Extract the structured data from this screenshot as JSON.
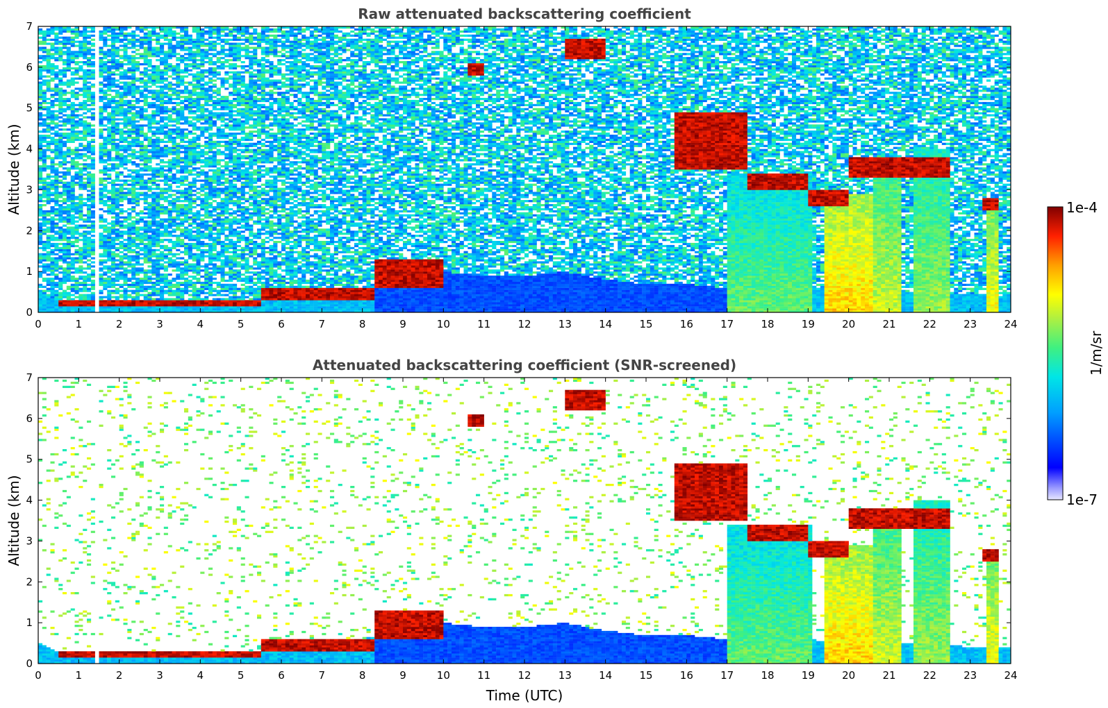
{
  "chart_data": [
    {
      "type": "heatmap",
      "title": "Raw attenuated backscattering coefficient",
      "xlabel": "",
      "ylabel": "Altitude (km)",
      "xlim": [
        0,
        24
      ],
      "ylim": [
        0,
        7
      ],
      "x_ticks": [
        "0",
        "1",
        "2",
        "3",
        "4",
        "5",
        "6",
        "7",
        "8",
        "9",
        "10",
        "11",
        "12",
        "13",
        "14",
        "15",
        "16",
        "17",
        "18",
        "19",
        "20",
        "21",
        "22",
        "23",
        "24"
      ],
      "y_ticks": [
        "0",
        "1",
        "2",
        "3",
        "4",
        "5",
        "6",
        "7"
      ],
      "screened": false,
      "boundary_layer_top_km": [
        [
          0.0,
          0.5
        ],
        [
          0.5,
          0.3
        ],
        [
          1.0,
          0.25
        ],
        [
          2.0,
          0.18
        ],
        [
          3.0,
          0.15
        ],
        [
          4.0,
          0.2
        ],
        [
          5.0,
          0.25
        ],
        [
          6.0,
          0.4
        ],
        [
          7.0,
          0.5
        ],
        [
          8.0,
          0.6
        ],
        [
          9.0,
          0.9
        ],
        [
          10.0,
          1.0
        ],
        [
          11.0,
          0.9
        ],
        [
          12.0,
          0.9
        ],
        [
          13.0,
          1.0
        ],
        [
          14.0,
          0.8
        ],
        [
          15.0,
          0.7
        ],
        [
          16.0,
          0.7
        ],
        [
          17.0,
          0.6
        ],
        [
          18.0,
          0.6
        ],
        [
          19.0,
          0.6
        ],
        [
          20.0,
          0.5
        ],
        [
          21.0,
          0.5
        ],
        [
          22.0,
          0.5
        ],
        [
          23.0,
          0.4
        ],
        [
          24.0,
          0.4
        ]
      ],
      "cloud_layers": [
        {
          "x": [
            0.5,
            5.5
          ],
          "y": [
            0.15,
            0.3
          ]
        },
        {
          "x": [
            5.5,
            8.3
          ],
          "y": [
            0.3,
            0.6
          ]
        },
        {
          "x": [
            8.3,
            10.0
          ],
          "y": [
            0.6,
            1.3
          ]
        },
        {
          "x": [
            10.6,
            11.0
          ],
          "y": [
            5.8,
            6.1
          ]
        },
        {
          "x": [
            13.0,
            14.0
          ],
          "y": [
            6.2,
            6.7
          ]
        },
        {
          "x": [
            15.7,
            17.5
          ],
          "y": [
            3.5,
            4.9
          ]
        },
        {
          "x": [
            17.5,
            19.0
          ],
          "y": [
            3.0,
            3.4
          ]
        },
        {
          "x": [
            19.0,
            20.0
          ],
          "y": [
            2.6,
            3.0
          ]
        },
        {
          "x": [
            20.0,
            22.5
          ],
          "y": [
            3.3,
            3.8
          ]
        },
        {
          "x": [
            23.3,
            23.7
          ],
          "y": [
            2.5,
            2.8
          ]
        }
      ],
      "precipitation_shafts": [
        {
          "x": [
            17.0,
            19.1
          ],
          "top": 3.4,
          "intensity": 0.55
        },
        {
          "x": [
            19.4,
            20.6
          ],
          "top": 2.9,
          "intensity": 0.75
        },
        {
          "x": [
            20.6,
            21.3
          ],
          "top": 3.6,
          "intensity": 0.65
        },
        {
          "x": [
            21.6,
            22.5
          ],
          "top": 4.0,
          "intensity": 0.6
        },
        {
          "x": [
            23.4,
            23.7
          ],
          "top": 2.7,
          "intensity": 0.7
        }
      ]
    },
    {
      "type": "heatmap",
      "title": "Attenuated backscattering coefficient (SNR-screened)",
      "xlabel": "Time (UTC)",
      "ylabel": "Altitude (km)",
      "xlim": [
        0,
        24
      ],
      "ylim": [
        0,
        7
      ],
      "x_ticks": [
        "0",
        "1",
        "2",
        "3",
        "4",
        "5",
        "6",
        "7",
        "8",
        "9",
        "10",
        "11",
        "12",
        "13",
        "14",
        "15",
        "16",
        "17",
        "18",
        "19",
        "20",
        "21",
        "22",
        "23",
        "24"
      ],
      "y_ticks": [
        "0",
        "1",
        "2",
        "3",
        "4",
        "5",
        "6",
        "7"
      ],
      "screened": true
    }
  ],
  "colorbar": {
    "label": "1/m/sr",
    "max_label": "1e-4",
    "min_label": "1e-7",
    "scale": "log",
    "range": [
      1e-07,
      0.0001
    ],
    "colormap": "jet"
  }
}
